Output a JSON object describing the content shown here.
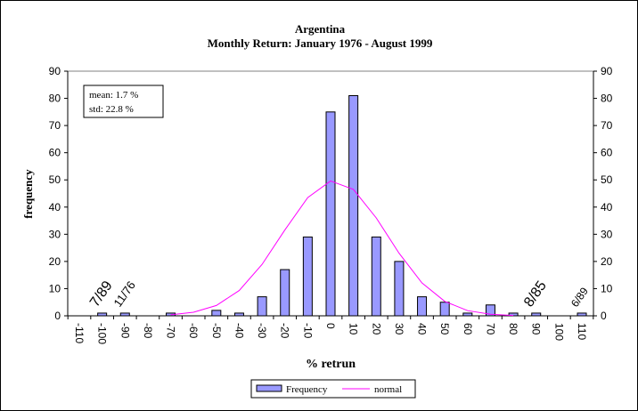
{
  "chart_data": {
    "type": "bar",
    "title": "Argentina",
    "subtitle": "Monthly Return: January 1976 - August 1999",
    "xlabel": "% retrun",
    "ylabel": "frequency",
    "ylim": [
      0,
      90
    ],
    "yticks": [
      0,
      10,
      20,
      30,
      40,
      50,
      60,
      70,
      80,
      90
    ],
    "categories": [
      "-110",
      "-100",
      "-90",
      "-80",
      "-70",
      "-60",
      "-50",
      "-40",
      "-30",
      "-20",
      "-10",
      "0",
      "10",
      "20",
      "30",
      "40",
      "50",
      "60",
      "70",
      "80",
      "90",
      "100",
      "110"
    ],
    "series": [
      {
        "name": "Frequency",
        "type": "bar",
        "color": "#9999ff",
        "values": [
          0,
          1,
          1,
          0,
          1,
          0,
          2,
          1,
          7,
          17,
          29,
          75,
          81,
          29,
          20,
          7,
          5,
          1,
          4,
          1,
          1,
          0,
          1
        ]
      },
      {
        "name": "normal",
        "type": "line",
        "color": "#ff00ff",
        "x": [
          -70,
          -60,
          -50,
          -40,
          -30,
          -20,
          -10,
          0,
          10,
          20,
          30,
          40,
          50,
          60,
          70,
          80
        ],
        "values": [
          0.35,
          1.3,
          3.8,
          9.3,
          18.9,
          31.6,
          43.5,
          49.6,
          46.5,
          36.0,
          23.0,
          12.1,
          5.3,
          1.9,
          0.56,
          0.14
        ]
      }
    ],
    "stats_box": {
      "mean": "mean: 1.7 %",
      "std": "std: 22.8 %"
    },
    "annotations": [
      {
        "text": "7/89",
        "x": "-100"
      },
      {
        "text": "11/76",
        "x": "-90"
      },
      {
        "text": "8/85",
        "x": "90"
      },
      {
        "text": "6/89",
        "x": "110"
      }
    ],
    "legend": {
      "position": "bottom",
      "items": [
        "Frequency",
        "normal"
      ]
    },
    "grid": false
  }
}
